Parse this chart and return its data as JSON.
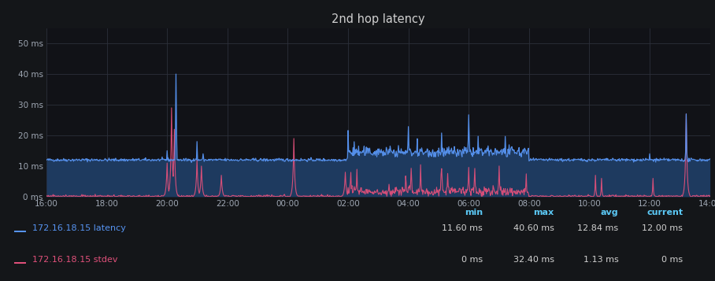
{
  "title": "2nd hop latency",
  "panel_bg": "#141619",
  "plot_bg": "#111217",
  "grid_color": "#2c2f3a",
  "title_color": "#d0d0d0",
  "tick_label_color": "#9fa7b3",
  "ylim": [
    0,
    55
  ],
  "yticks": [
    0,
    10,
    20,
    30,
    40,
    50
  ],
  "ytick_labels": [
    "0 ms",
    "10 ms",
    "20 ms",
    "30 ms",
    "40 ms",
    "50 ms"
  ],
  "xtick_labels": [
    "16:00",
    "18:00",
    "20:00",
    "22:00",
    "00:00",
    "02:00",
    "04:00",
    "06:00",
    "08:00",
    "10:00",
    "12:00",
    "14:00"
  ],
  "line1_color": "#5794f2",
  "line2_color": "#e0507a",
  "fill1_color": "#1e3a5f",
  "legend": [
    {
      "label": "172.16.18.15 latency",
      "color": "#5794f2",
      "min": "11.60 ms",
      "max": "40.60 ms",
      "avg": "12.84 ms",
      "current": "12.00 ms"
    },
    {
      "label": "172.16.18.15 stdev",
      "color": "#e0507a",
      "min": "0 ms",
      "max": "32.40 ms",
      "avg": "1.13 ms",
      "current": "0 ms"
    }
  ],
  "stat_headers": [
    "min",
    "max",
    "avg",
    "current"
  ],
  "stat_color": "#5bc8f5",
  "stat_value_color": "#d0d0d0"
}
